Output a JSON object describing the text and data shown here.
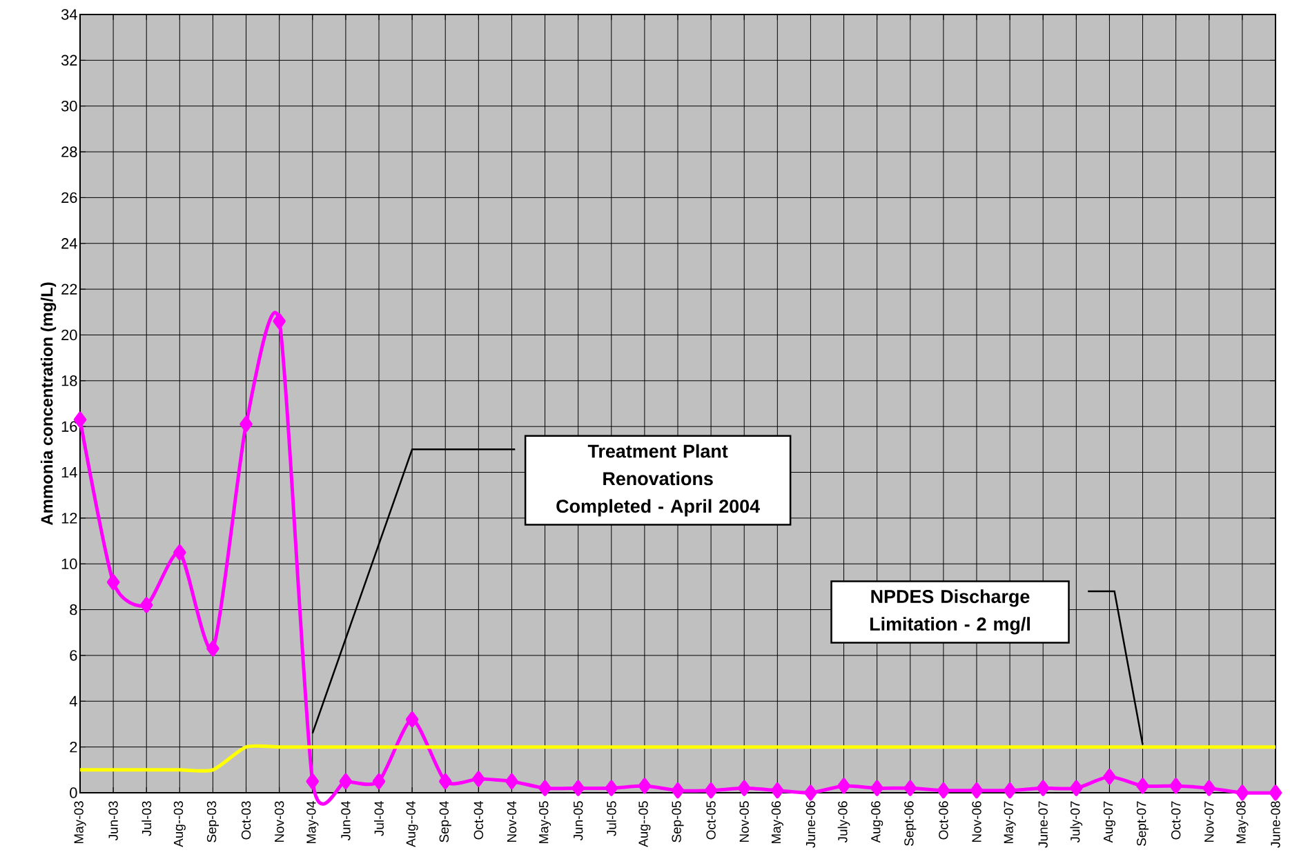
{
  "chart_data": {
    "type": "line",
    "ylabel": "Ammonia concentration (mg/L)",
    "categories": [
      "May-03",
      "Jun-03",
      "Jul-03",
      "Aug--03",
      "Sep-03",
      "Oct-03",
      "Nov-03",
      "May-04",
      "Jun-04",
      "Jul-04",
      "Aug--04",
      "Sep-04",
      "Oct-04",
      "Nov-04",
      "May-05",
      "Jun-05",
      "Jul-05",
      "Aug--05",
      "Sep-05",
      "Oct-05",
      "Nov-05",
      "May-06",
      "June-06",
      "July-06",
      "Aug-06",
      "Sept-06",
      "Oct-06",
      "Nov-06",
      "May-07",
      "June-07",
      "July-07",
      "Aug-07",
      "Sept-07",
      "Oct-07",
      "Nov-07",
      "May-08",
      "June-08"
    ],
    "series": [
      {
        "color": "#ff00ff",
        "marker": "diamond",
        "values": [
          16.3,
          9.2,
          8.2,
          10.5,
          6.3,
          16.1,
          20.6,
          0.5,
          0.5,
          0.5,
          3.2,
          0.5,
          0.6,
          0.5,
          0.2,
          0.2,
          0.2,
          0.3,
          0.1,
          0.1,
          0.2,
          0.1,
          0.0,
          0.3,
          0.2,
          0.2,
          0.1,
          0.1,
          0.1,
          0.2,
          0.2,
          0.7,
          0.3,
          0.3,
          0.2,
          0.0,
          0.0
        ]
      },
      {
        "color": "#ffff00",
        "marker": "none",
        "values": [
          1,
          1,
          1,
          1,
          1,
          2,
          2,
          2,
          2,
          2,
          2,
          2,
          2,
          2,
          2,
          2,
          2,
          2,
          2,
          2,
          2,
          2,
          2,
          2,
          2,
          2,
          2,
          2,
          2,
          2,
          2,
          2,
          2,
          2,
          2,
          2,
          2
        ]
      }
    ],
    "ylim": [
      0,
      34
    ],
    "yticks": [
      0,
      2,
      4,
      6,
      8,
      10,
      12,
      14,
      16,
      18,
      20,
      22,
      24,
      26,
      28,
      30,
      32,
      34
    ],
    "grid": true,
    "annotations": [
      "Treatment Plant Renovations Completed - April 2004",
      "NPDES Discharge Limitation - 2 mg/l"
    ]
  }
}
